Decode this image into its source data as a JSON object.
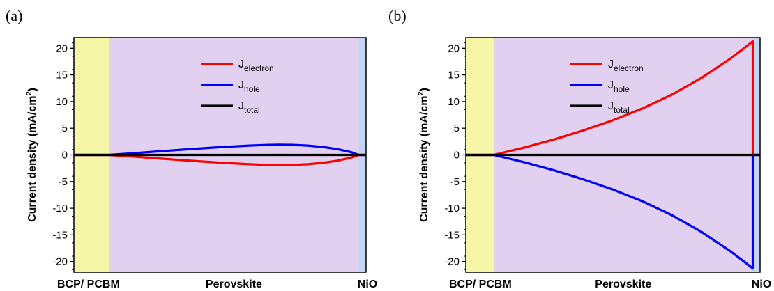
{
  "chart_data": [
    {
      "panel_label": "(a)",
      "type": "line",
      "ylabel": "Current density (mA/cm",
      "ylabel_sup": "2",
      "ylabel_close": ")",
      "ylim": [
        -22,
        22
      ],
      "yticks": [
        -20,
        -15,
        -10,
        -5,
        0,
        5,
        10,
        15,
        20
      ],
      "xlim": [
        0,
        1
      ],
      "grid": false,
      "legend_position": "top-center",
      "regions": [
        {
          "label": "BCP/ PCBM",
          "start": 0.0,
          "end": 0.12,
          "color": "#f6f7a6"
        },
        {
          "label": "Perovskite",
          "start": 0.12,
          "end": 0.975,
          "color": "#e2d0f0"
        },
        {
          "label": "NiO",
          "start": 0.975,
          "end": 1.0,
          "color": "#c5d3f6"
        }
      ],
      "series": [
        {
          "name": "J",
          "name_sub": "electron",
          "color": "#ff0000",
          "x": [
            0,
            0.12,
            0.2,
            0.3,
            0.4,
            0.5,
            0.6,
            0.65,
            0.7,
            0.75,
            0.8,
            0.85,
            0.9,
            0.95,
            0.975,
            1.0
          ],
          "y": [
            0,
            0,
            -0.3,
            -0.7,
            -1.1,
            -1.45,
            -1.75,
            -1.85,
            -1.9,
            -1.88,
            -1.75,
            -1.5,
            -1.1,
            -0.5,
            0,
            0
          ]
        },
        {
          "name": "J",
          "name_sub": "hole",
          "color": "#0000ff",
          "x": [
            0,
            0.12,
            0.2,
            0.3,
            0.4,
            0.5,
            0.6,
            0.65,
            0.7,
            0.75,
            0.8,
            0.85,
            0.9,
            0.95,
            0.975,
            1.0
          ],
          "y": [
            0,
            0,
            0.3,
            0.7,
            1.1,
            1.45,
            1.75,
            1.85,
            1.9,
            1.88,
            1.75,
            1.5,
            1.1,
            0.5,
            0,
            0
          ]
        },
        {
          "name": "J",
          "name_sub": "total",
          "color": "#000000",
          "x": [
            0,
            1.0
          ],
          "y": [
            0,
            0
          ]
        }
      ]
    },
    {
      "panel_label": "(b)",
      "type": "line",
      "ylabel": "Current density (mA/cm",
      "ylabel_sup": "2",
      "ylabel_close": ")",
      "ylim": [
        -22,
        22
      ],
      "yticks": [
        -20,
        -15,
        -10,
        -5,
        0,
        5,
        10,
        15,
        20
      ],
      "xlim": [
        0,
        1
      ],
      "grid": false,
      "legend_position": "top-center",
      "regions": [
        {
          "label": "BCP/ PCBM",
          "start": 0.0,
          "end": 0.095,
          "color": "#f6f7a6"
        },
        {
          "label": "Perovskite",
          "start": 0.095,
          "end": 0.975,
          "color": "#e2d0f0"
        },
        {
          "label": "NiO",
          "start": 0.975,
          "end": 1.0,
          "color": "#c5d3f6"
        }
      ],
      "series": [
        {
          "name": "J",
          "name_sub": "electron",
          "color": "#ff0000",
          "x": [
            0,
            0.095,
            0.2,
            0.3,
            0.4,
            0.5,
            0.6,
            0.7,
            0.8,
            0.9,
            0.95,
            0.975,
            0.975,
            1.0
          ],
          "y": [
            0,
            0,
            1.4,
            2.9,
            4.6,
            6.5,
            8.7,
            11.3,
            14.4,
            18.1,
            20.2,
            21.3,
            0,
            0
          ]
        },
        {
          "name": "J",
          "name_sub": "hole",
          "color": "#0000ff",
          "x": [
            0,
            0.095,
            0.2,
            0.3,
            0.4,
            0.5,
            0.6,
            0.7,
            0.8,
            0.9,
            0.95,
            0.975,
            0.975,
            1.0
          ],
          "y": [
            0,
            0,
            -1.4,
            -2.9,
            -4.6,
            -6.5,
            -8.7,
            -11.3,
            -14.4,
            -18.1,
            -20.2,
            -21.3,
            0,
            0
          ]
        },
        {
          "name": "J",
          "name_sub": "total",
          "color": "#000000",
          "x": [
            0,
            1.0
          ],
          "y": [
            0,
            0
          ]
        }
      ]
    }
  ]
}
